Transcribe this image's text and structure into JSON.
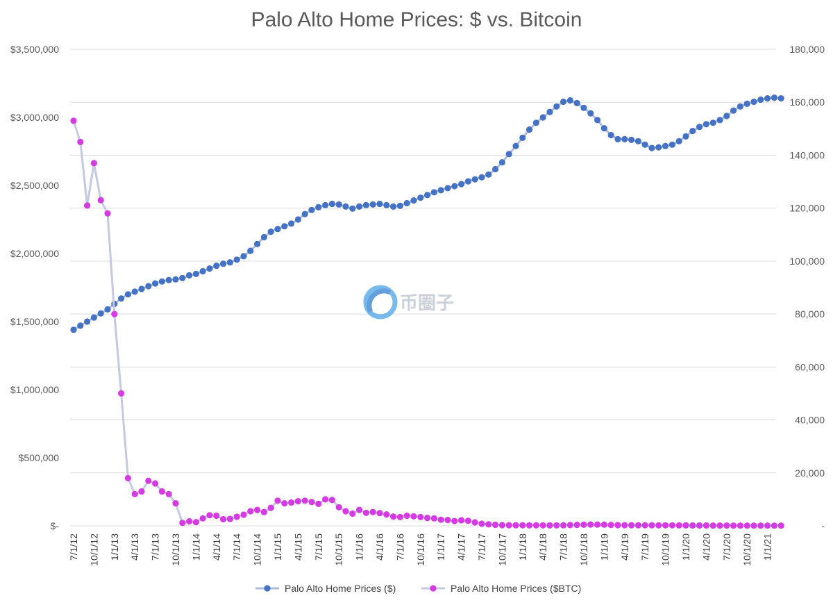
{
  "chart_data": {
    "type": "line",
    "title": "Palo Alto Home Prices: $ vs. Bitcoin",
    "left_axis": {
      "ylim": [
        0,
        3500000
      ],
      "ticks": [
        0,
        500000,
        1000000,
        1500000,
        2000000,
        2500000,
        3000000,
        3500000
      ],
      "tick_labels": [
        "$-",
        "$500,000",
        "$1,000,000",
        "$1,500,000",
        "$2,000,000",
        "$2,500,000",
        "$3,000,000",
        "$3,500,000"
      ]
    },
    "right_axis": {
      "ylim": [
        0,
        180000
      ],
      "ticks": [
        0,
        20000,
        40000,
        60000,
        80000,
        100000,
        120000,
        140000,
        160000,
        180000
      ],
      "tick_labels": [
        "-",
        "20,000",
        "40,000",
        "60,000",
        "80,000",
        "100,000",
        "120,000",
        "140,000",
        "160,000",
        "180,000"
      ]
    },
    "x_tick_labels": [
      "7/1/12",
      "10/1/12",
      "1/1/13",
      "4/1/13",
      "7/1/13",
      "10/1/13",
      "1/1/14",
      "4/1/14",
      "7/1/14",
      "10/1/14",
      "1/1/15",
      "4/1/15",
      "7/1/15",
      "10/1/15",
      "1/1/16",
      "4/1/16",
      "7/1/16",
      "10/1/16",
      "1/1/17",
      "4/1/17",
      "7/1/17",
      "10/1/17",
      "1/1/18",
      "4/1/18",
      "7/1/18",
      "10/1/18",
      "1/1/19",
      "4/1/19",
      "7/1/19",
      "10/1/19",
      "1/1/20",
      "4/1/20",
      "7/1/20",
      "10/1/20",
      "1/1/21"
    ],
    "grid": true,
    "legend_position": "bottom",
    "series": [
      {
        "name": "Palo Alto Home Prices ($)",
        "axis": "left",
        "color": "#4472c4",
        "values": [
          1440000,
          1470000,
          1500000,
          1530000,
          1560000,
          1590000,
          1630000,
          1670000,
          1700000,
          1720000,
          1740000,
          1760000,
          1780000,
          1795000,
          1805000,
          1810000,
          1820000,
          1840000,
          1850000,
          1870000,
          1890000,
          1910000,
          1925000,
          1935000,
          1955000,
          1980000,
          2020000,
          2070000,
          2120000,
          2160000,
          2180000,
          2200000,
          2220000,
          2250000,
          2290000,
          2320000,
          2340000,
          2355000,
          2365000,
          2360000,
          2345000,
          2330000,
          2345000,
          2355000,
          2360000,
          2365000,
          2355000,
          2345000,
          2350000,
          2370000,
          2390000,
          2410000,
          2430000,
          2450000,
          2465000,
          2480000,
          2495000,
          2510000,
          2530000,
          2545000,
          2560000,
          2580000,
          2620000,
          2670000,
          2730000,
          2790000,
          2850000,
          2910000,
          2960000,
          3000000,
          3040000,
          3080000,
          3115000,
          3125000,
          3105000,
          3070000,
          3030000,
          2980000,
          2920000,
          2870000,
          2840000,
          2840000,
          2835000,
          2825000,
          2800000,
          2775000,
          2780000,
          2790000,
          2800000,
          2825000,
          2860000,
          2900000,
          2930000,
          2950000,
          2960000,
          2980000,
          3010000,
          3050000,
          3080000,
          3100000,
          3115000,
          3130000,
          3140000,
          3145000,
          3140000
        ]
      },
      {
        "name": "Palo Alto Home Prices ($BTC)",
        "axis": "right",
        "color": "#d63be3",
        "values": [
          153000,
          145000,
          121000,
          137000,
          123000,
          118000,
          80000,
          50000,
          18000,
          12000,
          13000,
          17000,
          16000,
          13000,
          12000,
          8500,
          1100,
          1700,
          1400,
          2800,
          4000,
          3800,
          2500,
          2600,
          3400,
          4200,
          5500,
          6000,
          5200,
          6800,
          9500,
          8500,
          8800,
          9300,
          9500,
          9000,
          8300,
          10000,
          9800,
          7000,
          5500,
          4600,
          6000,
          4900,
          5200,
          4800,
          4300,
          3500,
          3300,
          3800,
          3600,
          3300,
          3000,
          2800,
          2300,
          2200,
          1800,
          2100,
          1900,
          1300,
          800,
          550,
          400,
          260,
          230,
          210,
          200,
          190,
          180,
          175,
          170,
          180,
          220,
          290,
          370,
          430,
          510,
          480,
          440,
          330,
          270,
          240,
          220,
          210,
          205,
          200,
          195,
          190,
          180,
          165,
          150,
          140,
          130,
          120,
          110,
          100,
          95,
          90,
          88,
          85,
          83,
          80,
          78,
          75,
          73
        ]
      }
    ]
  },
  "watermark": {
    "text": "币圈子",
    "logo": "coin-circle-logo"
  }
}
